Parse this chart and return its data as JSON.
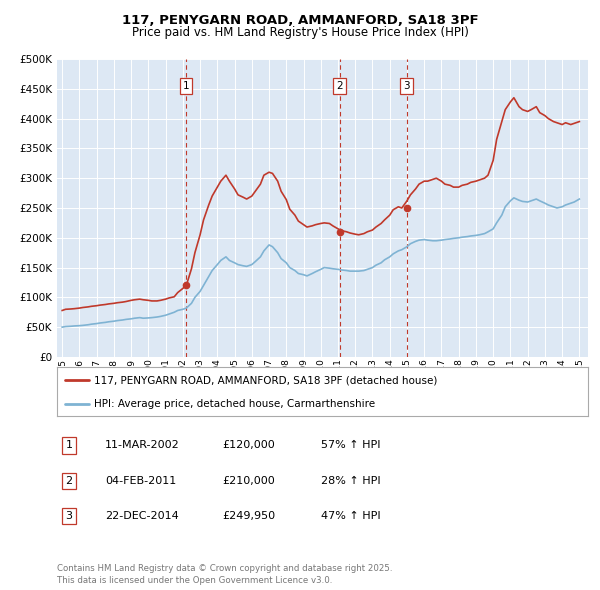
{
  "title": "117, PENYGARN ROAD, AMMANFORD, SA18 3PF",
  "subtitle": "Price paid vs. HM Land Registry's House Price Index (HPI)",
  "ylabel_ticks": [
    "£0",
    "£50K",
    "£100K",
    "£150K",
    "£200K",
    "£250K",
    "£300K",
    "£350K",
    "£400K",
    "£450K",
    "£500K"
  ],
  "ytick_values": [
    0,
    50000,
    100000,
    150000,
    200000,
    250000,
    300000,
    350000,
    400000,
    450000,
    500000
  ],
  "xlim_start": 1994.7,
  "xlim_end": 2025.5,
  "ylim_min": 0,
  "ylim_max": 500000,
  "background_color": "#dde8f4",
  "red_color": "#c0392b",
  "blue_color": "#7fb3d3",
  "grid_color": "#ffffff",
  "sale_dates": [
    2002.19,
    2011.09,
    2014.98
  ],
  "sale_prices": [
    120000,
    210000,
    249950
  ],
  "sale_labels": [
    "1",
    "2",
    "3"
  ],
  "legend_label_red": "117, PENYGARN ROAD, AMMANFORD, SA18 3PF (detached house)",
  "legend_label_blue": "HPI: Average price, detached house, Carmarthenshire",
  "table_rows": [
    {
      "num": "1",
      "date": "11-MAR-2002",
      "price": "£120,000",
      "hpi": "57% ↑ HPI"
    },
    {
      "num": "2",
      "date": "04-FEB-2011",
      "price": "£210,000",
      "hpi": "28% ↑ HPI"
    },
    {
      "num": "3",
      "date": "22-DEC-2014",
      "price": "£249,950",
      "hpi": "47% ↑ HPI"
    }
  ],
  "footer": "Contains HM Land Registry data © Crown copyright and database right 2025.\nThis data is licensed under the Open Government Licence v3.0.",
  "red_line_data_x": [
    1995.0,
    1995.2,
    1995.5,
    1995.7,
    1996.0,
    1996.2,
    1996.5,
    1996.7,
    1997.0,
    1997.2,
    1997.5,
    1997.7,
    1998.0,
    1998.2,
    1998.5,
    1998.7,
    1999.0,
    1999.2,
    1999.5,
    1999.7,
    2000.0,
    2000.2,
    2000.5,
    2000.7,
    2001.0,
    2001.2,
    2001.5,
    2001.7,
    2002.0,
    2002.2,
    2002.5,
    2002.7,
    2003.0,
    2003.2,
    2003.5,
    2003.7,
    2004.0,
    2004.2,
    2004.5,
    2004.7,
    2005.0,
    2005.2,
    2005.5,
    2005.7,
    2006.0,
    2006.2,
    2006.5,
    2006.7,
    2007.0,
    2007.2,
    2007.5,
    2007.7,
    2008.0,
    2008.2,
    2008.5,
    2008.7,
    2009.0,
    2009.2,
    2009.5,
    2009.7,
    2010.0,
    2010.2,
    2010.5,
    2010.7,
    2011.0,
    2011.2,
    2011.5,
    2011.7,
    2012.0,
    2012.2,
    2012.5,
    2012.7,
    2013.0,
    2013.2,
    2013.5,
    2013.7,
    2014.0,
    2014.2,
    2014.5,
    2014.7,
    2015.0,
    2015.2,
    2015.5,
    2015.7,
    2016.0,
    2016.2,
    2016.5,
    2016.7,
    2017.0,
    2017.2,
    2017.5,
    2017.7,
    2018.0,
    2018.2,
    2018.5,
    2018.7,
    2019.0,
    2019.2,
    2019.5,
    2019.7,
    2020.0,
    2020.2,
    2020.5,
    2020.7,
    2021.0,
    2021.2,
    2021.5,
    2021.7,
    2022.0,
    2022.2,
    2022.5,
    2022.7,
    2023.0,
    2023.2,
    2023.5,
    2023.7,
    2024.0,
    2024.2,
    2024.5,
    2024.7,
    2025.0
  ],
  "red_line_data_y": [
    78000,
    80000,
    80500,
    81000,
    82000,
    83000,
    84000,
    85000,
    86000,
    87000,
    88000,
    89000,
    90000,
    91000,
    92000,
    93000,
    95000,
    96000,
    97000,
    96000,
    95000,
    94000,
    94000,
    95000,
    97000,
    99000,
    101000,
    108000,
    115000,
    120000,
    148000,
    175000,
    205000,
    230000,
    255000,
    270000,
    285000,
    295000,
    305000,
    295000,
    282000,
    272000,
    268000,
    265000,
    270000,
    278000,
    290000,
    305000,
    310000,
    308000,
    295000,
    278000,
    264000,
    248000,
    238000,
    228000,
    222000,
    218000,
    220000,
    222000,
    224000,
    225000,
    224000,
    220000,
    215000,
    212000,
    210000,
    208000,
    206000,
    205000,
    207000,
    210000,
    213000,
    218000,
    224000,
    230000,
    238000,
    247000,
    252000,
    249950,
    262000,
    272000,
    282000,
    290000,
    295000,
    295000,
    298000,
    300000,
    295000,
    290000,
    288000,
    285000,
    285000,
    288000,
    290000,
    293000,
    295000,
    297000,
    300000,
    305000,
    330000,
    365000,
    395000,
    415000,
    428000,
    435000,
    420000,
    415000,
    412000,
    415000,
    420000,
    410000,
    405000,
    400000,
    395000,
    393000,
    390000,
    393000,
    390000,
    392000,
    395000
  ],
  "blue_line_data_x": [
    1995.0,
    1995.2,
    1995.5,
    1995.7,
    1996.0,
    1996.2,
    1996.5,
    1996.7,
    1997.0,
    1997.2,
    1997.5,
    1997.7,
    1998.0,
    1998.2,
    1998.5,
    1998.7,
    1999.0,
    1999.2,
    1999.5,
    1999.7,
    2000.0,
    2000.2,
    2000.5,
    2000.7,
    2001.0,
    2001.2,
    2001.5,
    2001.7,
    2002.0,
    2002.2,
    2002.5,
    2002.7,
    2003.0,
    2003.2,
    2003.5,
    2003.7,
    2004.0,
    2004.2,
    2004.5,
    2004.7,
    2005.0,
    2005.2,
    2005.5,
    2005.7,
    2006.0,
    2006.2,
    2006.5,
    2006.7,
    2007.0,
    2007.2,
    2007.5,
    2007.7,
    2008.0,
    2008.2,
    2008.5,
    2008.7,
    2009.0,
    2009.2,
    2009.5,
    2009.7,
    2010.0,
    2010.2,
    2010.5,
    2010.7,
    2011.0,
    2011.2,
    2011.5,
    2011.7,
    2012.0,
    2012.2,
    2012.5,
    2012.7,
    2013.0,
    2013.2,
    2013.5,
    2013.7,
    2014.0,
    2014.2,
    2014.5,
    2014.7,
    2015.0,
    2015.2,
    2015.5,
    2015.7,
    2016.0,
    2016.2,
    2016.5,
    2016.7,
    2017.0,
    2017.2,
    2017.5,
    2017.7,
    2018.0,
    2018.2,
    2018.5,
    2018.7,
    2019.0,
    2019.2,
    2019.5,
    2019.7,
    2020.0,
    2020.2,
    2020.5,
    2020.7,
    2021.0,
    2021.2,
    2021.5,
    2021.7,
    2022.0,
    2022.2,
    2022.5,
    2022.7,
    2023.0,
    2023.2,
    2023.5,
    2023.7,
    2024.0,
    2024.2,
    2024.5,
    2024.7,
    2025.0
  ],
  "blue_line_data_y": [
    50000,
    51000,
    51500,
    52000,
    52500,
    53000,
    54000,
    55000,
    56000,
    57000,
    58000,
    59000,
    60000,
    61000,
    62000,
    63000,
    64000,
    65000,
    66000,
    65000,
    65500,
    66000,
    67000,
    68000,
    70000,
    72000,
    75000,
    78000,
    80000,
    82000,
    90000,
    100000,
    110000,
    120000,
    135000,
    145000,
    155000,
    162000,
    168000,
    162000,
    158000,
    155000,
    153000,
    152000,
    155000,
    160000,
    168000,
    178000,
    188000,
    185000,
    175000,
    165000,
    158000,
    150000,
    145000,
    140000,
    138000,
    136000,
    140000,
    143000,
    147000,
    150000,
    149000,
    148000,
    147000,
    146000,
    145000,
    144000,
    144000,
    144000,
    145000,
    147000,
    150000,
    154000,
    158000,
    163000,
    168000,
    173000,
    178000,
    180000,
    185000,
    190000,
    194000,
    196000,
    197000,
    196000,
    195000,
    195000,
    196000,
    197000,
    198000,
    199000,
    200000,
    201000,
    202000,
    203000,
    204000,
    205000,
    207000,
    210000,
    215000,
    225000,
    238000,
    252000,
    262000,
    267000,
    263000,
    261000,
    260000,
    262000,
    265000,
    262000,
    258000,
    255000,
    252000,
    250000,
    252000,
    255000,
    258000,
    260000,
    265000
  ]
}
